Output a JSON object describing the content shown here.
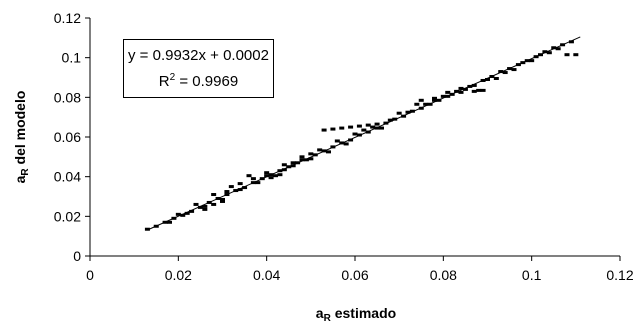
{
  "chart_data": {
    "type": "scatter",
    "xlabel_main": "a",
    "xlabel_sub": "R",
    "xlabel_rest": " estimado",
    "ylabel_main": "a",
    "ylabel_sub": "R",
    "ylabel_rest": " del modelo",
    "xlim": [
      0,
      0.12
    ],
    "ylim": [
      0,
      0.12
    ],
    "xticks": [
      "0",
      "0.02",
      "0.04",
      "0.06",
      "0.08",
      "0.1",
      "0.12"
    ],
    "yticks": [
      "0",
      "0.02",
      "0.04",
      "0.06",
      "0.08",
      "0.1",
      "0.12"
    ],
    "xtick_values": [
      0,
      0.02,
      0.04,
      0.06,
      0.08,
      0.1,
      0.12
    ],
    "ytick_values": [
      0,
      0.02,
      0.04,
      0.06,
      0.08,
      0.1,
      0.12
    ],
    "grid": false,
    "marker_color": "#000000",
    "trendline": {
      "slope": 0.9932,
      "intercept": 0.0002,
      "x_range": [
        0.013,
        0.111
      ]
    },
    "equation_text": "y = 0.9932x + 0.0002",
    "r2_prefix": "R",
    "r2_sup": "2",
    "r2_rest": " = 0.9969",
    "series": [
      {
        "points": [
          [
            0.013,
            0.0135
          ],
          [
            0.015,
            0.015
          ],
          [
            0.017,
            0.017
          ],
          [
            0.019,
            0.019
          ],
          [
            0.021,
            0.0205
          ],
          [
            0.023,
            0.0225
          ],
          [
            0.025,
            0.0245
          ],
          [
            0.027,
            0.027
          ],
          [
            0.029,
            0.029
          ],
          [
            0.031,
            0.031
          ],
          [
            0.033,
            0.033
          ],
          [
            0.035,
            0.0345
          ],
          [
            0.037,
            0.037
          ],
          [
            0.039,
            0.039
          ],
          [
            0.041,
            0.041
          ],
          [
            0.043,
            0.043
          ],
          [
            0.045,
            0.045
          ],
          [
            0.047,
            0.047
          ],
          [
            0.049,
            0.0485
          ],
          [
            0.051,
            0.051
          ],
          [
            0.053,
            0.053
          ],
          [
            0.055,
            0.055
          ],
          [
            0.057,
            0.057
          ],
          [
            0.059,
            0.0585
          ],
          [
            0.061,
            0.061
          ],
          [
            0.063,
            0.0625
          ],
          [
            0.065,
            0.0645
          ],
          [
            0.067,
            0.067
          ],
          [
            0.069,
            0.069
          ],
          [
            0.071,
            0.0705
          ],
          [
            0.073,
            0.073
          ],
          [
            0.075,
            0.0745
          ],
          [
            0.077,
            0.0765
          ],
          [
            0.079,
            0.0785
          ],
          [
            0.081,
            0.0805
          ],
          [
            0.083,
            0.083
          ],
          [
            0.085,
            0.084
          ],
          [
            0.087,
            0.086
          ],
          [
            0.089,
            0.0885
          ],
          [
            0.091,
            0.0905
          ],
          [
            0.093,
            0.093
          ],
          [
            0.095,
            0.0945
          ],
          [
            0.097,
            0.0965
          ],
          [
            0.099,
            0.0985
          ],
          [
            0.101,
            0.1005
          ],
          [
            0.103,
            0.103
          ],
          [
            0.105,
            0.105
          ],
          [
            0.107,
            0.1065
          ],
          [
            0.109,
            0.108
          ]
        ]
      },
      {
        "points": [
          [
            0.02,
            0.021
          ],
          [
            0.024,
            0.026
          ],
          [
            0.028,
            0.031
          ],
          [
            0.032,
            0.035
          ],
          [
            0.036,
            0.0405
          ],
          [
            0.04,
            0.042
          ],
          [
            0.044,
            0.046
          ],
          [
            0.048,
            0.05
          ],
          [
            0.052,
            0.0535
          ],
          [
            0.056,
            0.058
          ],
          [
            0.06,
            0.0615
          ],
          [
            0.064,
            0.065
          ],
          [
            0.068,
            0.0685
          ],
          [
            0.072,
            0.0725
          ],
          [
            0.076,
            0.0765
          ],
          [
            0.08,
            0.0805
          ],
          [
            0.084,
            0.0825
          ],
          [
            0.088,
            0.0835
          ],
          [
            0.092,
            0.0895
          ],
          [
            0.096,
            0.094
          ],
          [
            0.1,
            0.0985
          ],
          [
            0.104,
            0.1025
          ],
          [
            0.108,
            0.1015
          ],
          [
            0.11,
            0.1015
          ]
        ]
      },
      {
        "points": [
          [
            0.018,
            0.017
          ],
          [
            0.022,
            0.0215
          ],
          [
            0.026,
            0.025
          ],
          [
            0.03,
            0.0285
          ],
          [
            0.034,
            0.0335
          ],
          [
            0.038,
            0.037
          ],
          [
            0.042,
            0.0405
          ],
          [
            0.046,
            0.0455
          ],
          [
            0.05,
            0.049
          ],
          [
            0.054,
            0.0525
          ],
          [
            0.058,
            0.0565
          ],
          [
            0.062,
            0.0635
          ],
          [
            0.066,
            0.0645
          ],
          [
            0.07,
            0.072
          ],
          [
            0.074,
            0.0765
          ],
          [
            0.078,
            0.0785
          ],
          [
            0.082,
            0.0815
          ],
          [
            0.086,
            0.0855
          ],
          [
            0.09,
            0.089
          ],
          [
            0.094,
            0.0925
          ],
          [
            0.098,
            0.0975
          ],
          [
            0.102,
            0.1015
          ],
          [
            0.106,
            0.1045
          ]
        ]
      },
      {
        "points": [
          [
            0.053,
            0.0635
          ],
          [
            0.055,
            0.064
          ],
          [
            0.057,
            0.0645
          ],
          [
            0.059,
            0.065
          ],
          [
            0.061,
            0.0655
          ],
          [
            0.063,
            0.066
          ],
          [
            0.065,
            0.0665
          ],
          [
            0.075,
            0.0785
          ],
          [
            0.078,
            0.0795
          ],
          [
            0.081,
            0.0825
          ],
          [
            0.084,
            0.0845
          ],
          [
            0.087,
            0.083
          ],
          [
            0.089,
            0.0835
          ]
        ]
      },
      {
        "points": [
          [
            0.031,
            0.0325
          ],
          [
            0.034,
            0.0365
          ],
          [
            0.037,
            0.039
          ],
          [
            0.04,
            0.0405
          ],
          [
            0.044,
            0.0435
          ],
          [
            0.046,
            0.047
          ],
          [
            0.048,
            0.0485
          ],
          [
            0.05,
            0.0515
          ],
          [
            0.041,
            0.0395
          ],
          [
            0.043,
            0.041
          ],
          [
            0.03,
            0.0275
          ],
          [
            0.028,
            0.026
          ],
          [
            0.026,
            0.0235
          ]
        ]
      }
    ]
  }
}
